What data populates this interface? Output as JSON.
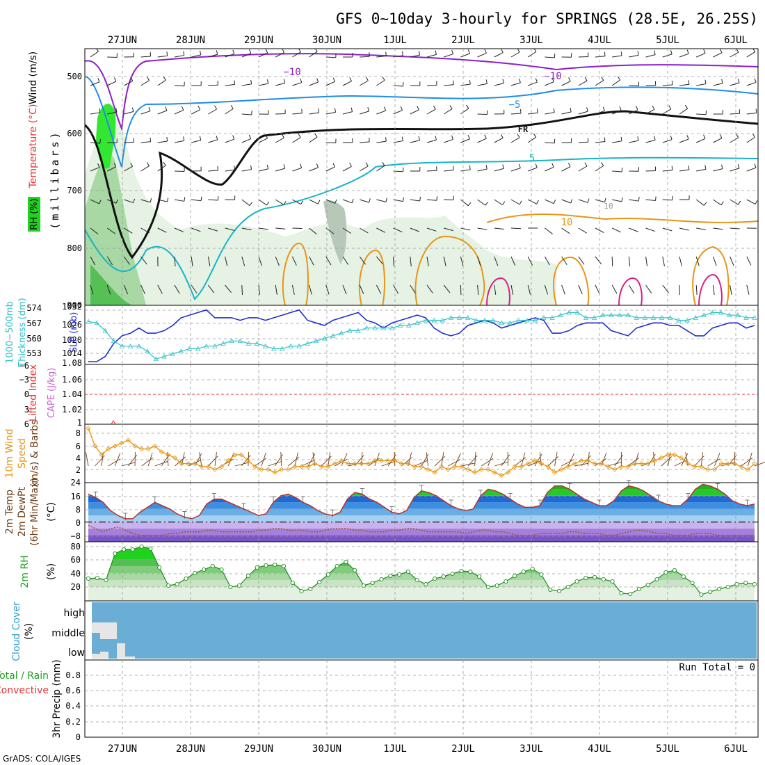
{
  "title": "GFS 0~10day 3-hourly for SPRINGS (28.5E, 26.25S)",
  "credit": "GrADS: COLA/IGES",
  "date_labels": [
    "27JUN",
    "28JUN",
    "29JUN",
    "30JUN",
    "1JUL",
    "2JUL",
    "3JUL",
    "4JUL",
    "5JUL",
    "6JUL"
  ],
  "colors": {
    "purple": "#8c1ec8",
    "blue": "#1e8ce6",
    "cyan": "#14b4c8",
    "orange": "#e69614",
    "magenta": "#dc1e82",
    "slp": "#1e2fd2",
    "thickness": "#30c0c8",
    "green": "#1ed21e",
    "rain_green": "#1ea01e",
    "convective_red": "#e63232",
    "cloud": "#6aaed6"
  },
  "panels": {
    "upper": {
      "ylabel_wind": "Wind (m/s)",
      "ylabel_temp": "Temperature (°C)",
      "ylabel_rh": "RH (%)",
      "ylabel_units": "(millibars)",
      "contour_labels": [
        "−10",
        "−10",
        "−5",
        "FR",
        "5",
        "10",
        "10"
      ]
    },
    "slp": {
      "ylabel_thick": "1000−500mb",
      "ylabel_thick2": "Thickness (dm)",
      "ylabel_slp": "SLP (mb)"
    },
    "cape": {
      "ylabel_li": "Lifted Index",
      "ylabel_cape": "CAPE (J/kg)"
    },
    "wind10": {
      "ylabel1": "10m Wind",
      "ylabel2": "Speed",
      "ylabel3": "(m/s) & Barbs"
    },
    "temp2m": {
      "ylabel1": "2m Temp",
      "ylabel2": "2m DewPt",
      "ylabel3": "(6hr Min/Max)",
      "ylabel_units": "(°C)"
    },
    "rh2m": {
      "ylabel1": "2m RH",
      "ylabel_units": "(%)"
    },
    "cloud": {
      "ylabel1": "Cloud Cover",
      "ylabel_units": "(%)",
      "levels": [
        "high",
        "middle",
        "low"
      ]
    },
    "precip": {
      "ylabel_total": "Total / Rain",
      "ylabel_conv": "Convective",
      "ylabel_units": "3hr Precip (mm)",
      "run_total": "Run Total = 0"
    }
  },
  "chart_data": [
    {
      "type": "heatmap",
      "name": "upper-air cross-section",
      "y_ticks": [
        "500",
        "600",
        "700",
        "800",
        "900"
      ],
      "ylim": [
        450,
        900
      ]
    },
    {
      "type": "line",
      "name": "SLP and thickness",
      "y_ticks_left": [
        "574",
        "567",
        "560",
        "553"
      ],
      "y_ticks_right": [
        "1032",
        "1026",
        "1020",
        "1014",
        "1.08"
      ],
      "series": [
        {
          "name": "SLP (mb)",
          "y": [
            1011,
            1011,
            1013,
            1018,
            1021,
            1022,
            1024,
            1022,
            1022,
            1023,
            1025,
            1028,
            1029,
            1030,
            1031,
            1028,
            1028,
            1028,
            1027,
            1028,
            1028,
            1027,
            1028,
            1029,
            1030,
            1031,
            1027,
            1026,
            1025,
            1027,
            1028,
            1029,
            1030,
            1027,
            1026,
            1024,
            1026,
            1027,
            1028,
            1029,
            1028,
            1024,
            1022,
            1021,
            1022,
            1025,
            1026,
            1027,
            1026,
            1024,
            1025,
            1026,
            1027,
            1028,
            1027,
            1022,
            1022,
            1023,
            1025,
            1026,
            1026,
            1026,
            1023,
            1022,
            1021,
            1024,
            1025,
            1026,
            1026,
            1025,
            1025,
            1023,
            1021,
            1021,
            1024,
            1025,
            1026,
            1026,
            1024,
            1025
          ],
          "color": "#1e2fd2"
        },
        {
          "name": "1000-500mb Thickness (dm)",
          "y": [
            564.5,
            564,
            561,
            557,
            555,
            555,
            555,
            553,
            550,
            551,
            552,
            553,
            554,
            554,
            555,
            555,
            556,
            557,
            557,
            556,
            556,
            555,
            554,
            554,
            555,
            555,
            556,
            557,
            558,
            559,
            560,
            561,
            561,
            562,
            562,
            562,
            562,
            563,
            563,
            564,
            565,
            565,
            565,
            566,
            566,
            566,
            565,
            565,
            565,
            564,
            564,
            565,
            565,
            565,
            566,
            566,
            567,
            568,
            568,
            566,
            566,
            567,
            567,
            567,
            567,
            566,
            566,
            566,
            566,
            566,
            565,
            565,
            566,
            567,
            568,
            568,
            567,
            567,
            566,
            566
          ],
          "color": "#30c0c8"
        }
      ]
    },
    {
      "type": "line",
      "name": "Lifted index and CAPE",
      "y_ticks_left": [
        "−6",
        "−3",
        "0",
        "3",
        "6"
      ],
      "y_ticks_right": [
        "1.06",
        "1.04",
        "1.02",
        "1"
      ],
      "series": [
        {
          "name": "Lifted Index",
          "values": [
            0
          ]
        }
      ]
    },
    {
      "type": "line",
      "name": "10m wind speed",
      "y_ticks": [
        "8",
        "6",
        "4",
        "2"
      ],
      "ylim": [
        0,
        9
      ],
      "series": [
        {
          "name": "10m Wind Speed (m/s)",
          "y": [
            9,
            6,
            4.5,
            5.5,
            6,
            6.5,
            7,
            6,
            5.5,
            5.5,
            6,
            5,
            4.5,
            4,
            3,
            3,
            3,
            2.5,
            2.5,
            2,
            2.5,
            3.5,
            4.5,
            4.5,
            3.5,
            2.5,
            2,
            2,
            1.5,
            2,
            2,
            2.5,
            2.5,
            2.5,
            3,
            2.5,
            2.5,
            3,
            3.5,
            3,
            3,
            3,
            3,
            3.5,
            3.5,
            3.5,
            3.5,
            3,
            3,
            2.5,
            2.5,
            2,
            1.5,
            2.5,
            2,
            2.5,
            2.5,
            2,
            1.5,
            2,
            2,
            1.5,
            1,
            1.5,
            2.5,
            2.5,
            3,
            3.5,
            3,
            2.5,
            1.5,
            2,
            2.5,
            3,
            3.5,
            3.5,
            3,
            3,
            2.5,
            2,
            2.5,
            2.5,
            3,
            3,
            3,
            3.5,
            4,
            4.5,
            4.5,
            4,
            3,
            2.5,
            2.5,
            2,
            2,
            3,
            3,
            3,
            2.5,
            2,
            3
          ],
          "color": "#e69614"
        }
      ]
    },
    {
      "type": "area",
      "name": "2m temperature and dew point",
      "y_ticks": [
        "24",
        "16",
        "8",
        "0",
        "−8"
      ],
      "ylim": [
        -12,
        24
      ],
      "series": [
        {
          "name": "2m Temp (°C)",
          "y": [
            17,
            15,
            12,
            7,
            4,
            2,
            2,
            6,
            9,
            12,
            10,
            8,
            5,
            3,
            2,
            4,
            11,
            14,
            14,
            12,
            10,
            8,
            6,
            4,
            5,
            12,
            16,
            17,
            15,
            12,
            10,
            7,
            5,
            4,
            6,
            14,
            18,
            17,
            14,
            12,
            9,
            6,
            5,
            7,
            15,
            19,
            18,
            16,
            13,
            10,
            8,
            7,
            8,
            16,
            20,
            19,
            17,
            14,
            11,
            9,
            9,
            10,
            18,
            22,
            22,
            20,
            17,
            14,
            12,
            10,
            10,
            13,
            19,
            22,
            21,
            19,
            16,
            13,
            11,
            10,
            10,
            14,
            20,
            23,
            22,
            20,
            17,
            13,
            11,
            10,
            11
          ]
        },
        {
          "name": "2m DewPt (°C)",
          "y": [
            -2,
            -4,
            -6,
            -4,
            -3,
            -5,
            -7,
            -8,
            -8,
            -8,
            -8,
            -7,
            -7,
            -6,
            -6,
            -6,
            -5,
            -5,
            -6,
            -6,
            -6,
            -6,
            -6,
            -5,
            -5,
            -4,
            -4,
            -5,
            -5,
            -5,
            -6,
            -6,
            -5,
            -4,
            -4,
            -4,
            -5,
            -5,
            -6,
            -6,
            -6,
            -5,
            -5,
            -4,
            -4,
            -5,
            -6,
            -6,
            -6,
            -6,
            -6,
            -7,
            -6,
            -5,
            -5,
            -6,
            -6,
            -7,
            -8,
            -8,
            -8,
            -7,
            -7,
            -7,
            -7,
            -6,
            -6,
            -7,
            -7,
            -7,
            -8,
            -8,
            -7,
            -6,
            -5,
            -5,
            -6,
            -7,
            -7,
            -8,
            -8,
            -8,
            -7,
            -7,
            -7,
            -8,
            -8,
            -8,
            -8,
            -8,
            -8
          ]
        }
      ]
    },
    {
      "type": "area",
      "name": "2m relative humidity",
      "y_ticks": [
        "80",
        "60",
        "40",
        "20"
      ],
      "ylim": [
        0,
        85
      ],
      "series": [
        {
          "name": "2m RH (%)",
          "y": [
            32,
            33,
            30,
            68,
            74,
            74,
            78,
            75,
            48,
            22,
            24,
            32,
            40,
            45,
            50,
            45,
            20,
            22,
            36,
            48,
            51,
            52,
            50,
            26,
            14,
            17,
            27,
            38,
            50,
            56,
            44,
            22,
            26,
            31,
            36,
            38,
            42,
            30,
            24,
            32,
            35,
            39,
            43,
            42,
            35,
            20,
            22,
            28,
            36,
            42,
            46,
            38,
            16,
            14,
            20,
            28,
            33,
            34,
            31,
            28,
            11,
            10,
            17,
            23,
            31,
            41,
            44,
            35,
            26,
            9,
            13,
            17,
            20,
            24,
            26,
            24
          ]
        }
      ]
    },
    {
      "type": "area",
      "name": "cloud cover",
      "categories": [
        "high",
        "middle",
        "low"
      ]
    },
    {
      "type": "bar",
      "name": "3hr precipitation",
      "y_ticks": [
        "0.8",
        "0.6",
        "0.4",
        "0.2",
        "0"
      ],
      "ylim": [
        0,
        1
      ],
      "series": [
        {
          "name": "3hr Precip (mm)",
          "values": [
            0
          ]
        }
      ]
    }
  ]
}
